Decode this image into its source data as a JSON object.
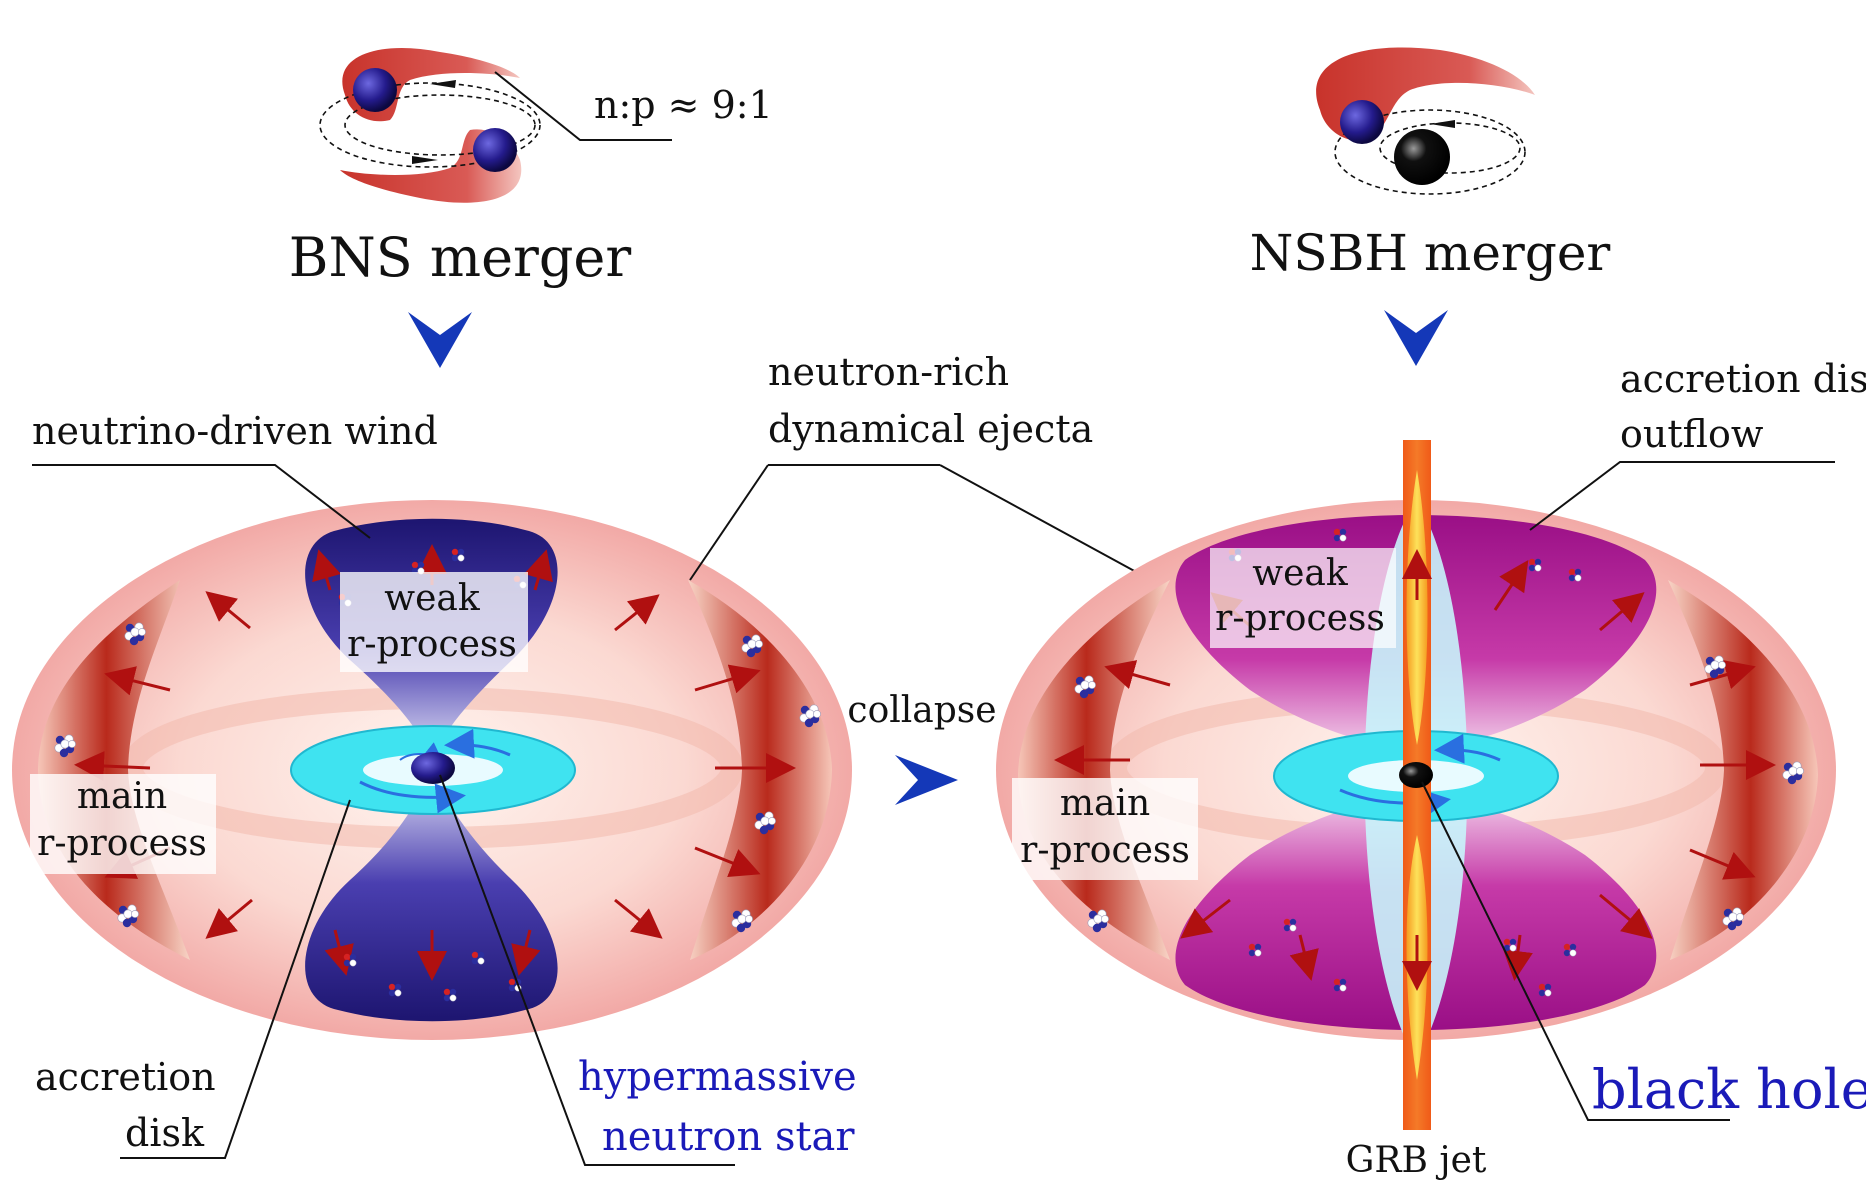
{
  "labels": {
    "np_ratio": "n:p ≈ 9:1",
    "bns_title": "BNS merger",
    "nsbh_title": "NSBH merger",
    "neutrino_wind": "neutrino-driven wind",
    "neutron_rich_1": "neutron-rich",
    "neutron_rich_2": "dynamical ejecta",
    "accretion_outflow_1": "accretion disk",
    "accretion_outflow_2": "outflow",
    "weak_1": "weak",
    "weak_2": "r-process",
    "main_1": "main",
    "main_2": "r-process",
    "collapse": "collapse",
    "accretion_disk_1": "accretion",
    "accretion_disk_2": "disk",
    "hmns_1": "hypermassive",
    "hmns_2": "neutron star",
    "grb_jet": "GRB jet",
    "black_hole": "black hole"
  },
  "colors": {
    "ejecta": "#f5b8b5",
    "ejecta_dark": "#b31d17",
    "wind": "#1f1a7a",
    "disk": "#3fe3f0",
    "outflow": "#a8118a",
    "jet": "#f36b1c",
    "jet_core": "#fdd23c",
    "label_blue": "#1a1ab8",
    "arrow_blue": "#1438b8"
  }
}
